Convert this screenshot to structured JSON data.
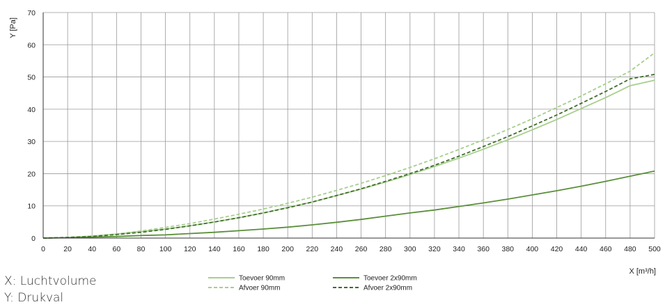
{
  "chart_data": {
    "type": "line",
    "xlabel": "X [m³/h]",
    "ylabel": "Y [Pa]",
    "xlim": [
      0,
      500
    ],
    "ylim": [
      0,
      70
    ],
    "xticks": [
      0,
      20,
      40,
      60,
      80,
      100,
      120,
      140,
      160,
      180,
      200,
      220,
      240,
      260,
      280,
      300,
      320,
      340,
      360,
      380,
      400,
      420,
      440,
      460,
      480,
      500
    ],
    "yticks": [
      0,
      10,
      20,
      30,
      40,
      50,
      60,
      70
    ],
    "grid": true,
    "legend_position": "bottom-center",
    "x": [
      0,
      20,
      40,
      60,
      80,
      100,
      120,
      140,
      160,
      180,
      200,
      220,
      240,
      260,
      280,
      300,
      320,
      340,
      360,
      380,
      400,
      420,
      440,
      460,
      480,
      500
    ],
    "series": [
      {
        "name": "Toevoer 90mm",
        "color": "#a6cf8c",
        "dash": "solid",
        "values": [
          0,
          0.2,
          0.6,
          1.2,
          2.0,
          2.8,
          3.8,
          5.0,
          6.3,
          7.8,
          9.5,
          11.2,
          13.2,
          15.2,
          17.4,
          19.7,
          22.2,
          24.8,
          27.6,
          30.5,
          33.6,
          36.8,
          40.2,
          43.6,
          47.3,
          49.0
        ]
      },
      {
        "name": "Afvoer 90mm",
        "color": "#a6cf8c",
        "dash": "dashed",
        "values": [
          0,
          0.2,
          0.6,
          1.3,
          2.2,
          3.3,
          4.5,
          5.9,
          7.4,
          9.0,
          10.8,
          12.7,
          14.8,
          17.0,
          19.4,
          21.9,
          24.6,
          27.5,
          30.5,
          33.7,
          37.0,
          40.5,
          44.1,
          47.9,
          51.8,
          57.5
        ]
      },
      {
        "name": "Toevoer 2x90mm",
        "color": "#5a8f3a",
        "dash": "solid",
        "values": [
          0,
          0.1,
          0.3,
          0.5,
          0.8,
          1.0,
          1.4,
          1.8,
          2.3,
          2.8,
          3.4,
          4.1,
          4.9,
          5.8,
          6.8,
          7.8,
          8.7,
          9.8,
          10.9,
          12.1,
          13.4,
          14.7,
          16.1,
          17.6,
          19.2,
          20.8
        ]
      },
      {
        "name": "Afvoer 2x90mm",
        "color": "#3f6e2a",
        "dash": "dashed",
        "values": [
          0,
          0.2,
          0.5,
          1.1,
          1.8,
          2.7,
          3.8,
          5.0,
          6.3,
          7.8,
          9.4,
          11.2,
          13.2,
          15.3,
          17.6,
          20.0,
          22.6,
          25.4,
          28.4,
          31.5,
          34.8,
          38.2,
          41.8,
          45.5,
          49.4,
          50.8
        ]
      }
    ]
  },
  "notes": {
    "x_line": "X: Luchtvolume",
    "y_line": "Y: Drukval"
  }
}
